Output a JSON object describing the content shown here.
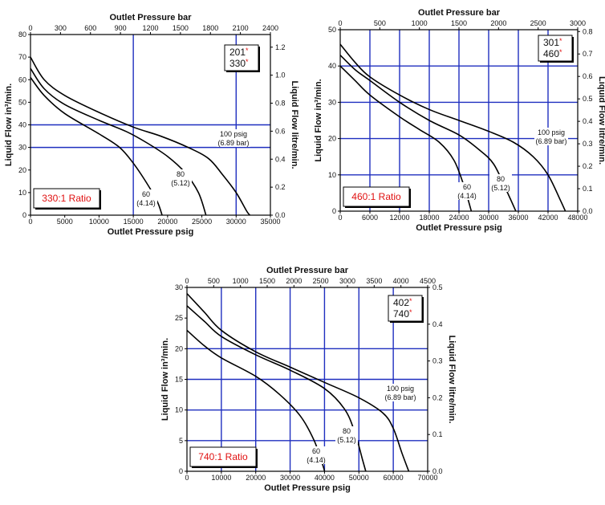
{
  "chart_data": [
    {
      "type": "line",
      "top_axis_label": "Outlet Pressure bar",
      "xlabel": "Outlet Pressure psig",
      "ylabel": "Liquid Flow in³/min.",
      "right_axis_label": "Liquid Flow litre/min.",
      "xlim": [
        0,
        35000
      ],
      "ylim": [
        0,
        80
      ],
      "x_ticks": [
        "0",
        "5000",
        "10000",
        "15000",
        "20000",
        "25000",
        "30000",
        "35000"
      ],
      "y_ticks": [
        "0",
        "10",
        "20",
        "30",
        "40",
        "50",
        "60",
        "70",
        "80"
      ],
      "top_ticks": [
        "0",
        "300",
        "600",
        "900",
        "1200",
        "1500",
        "1800",
        "2100",
        "2400"
      ],
      "right_ticks": [
        "0.0",
        "0.2",
        "0.4",
        "0.6",
        "0.8",
        "1.0",
        "1.2"
      ],
      "models": [
        "201",
        "330"
      ],
      "ratio": "330:1 Ratio",
      "series": [
        {
          "name": "60 (4.14)",
          "values": [
            [
              0,
              61
            ],
            [
              2000,
              53
            ],
            [
              5000,
              45
            ],
            [
              10000,
              36
            ],
            [
              13000,
              30
            ],
            [
              15000,
              23
            ],
            [
              17000,
              14
            ],
            [
              18500,
              6
            ],
            [
              19200,
              0
            ]
          ]
        },
        {
          "name": "80 (5.12)",
          "values": [
            [
              0,
              65
            ],
            [
              2000,
              56
            ],
            [
              5000,
              49
            ],
            [
              10000,
              42
            ],
            [
              14000,
              37
            ],
            [
              17000,
              32
            ],
            [
              20000,
              26
            ],
            [
              22500,
              19
            ],
            [
              24500,
              10
            ],
            [
              25600,
              0
            ]
          ]
        },
        {
          "name": "100 psig (6.89 bar)",
          "values": [
            [
              0,
              70
            ],
            [
              2000,
              60
            ],
            [
              5000,
              53
            ],
            [
              10000,
              45.5
            ],
            [
              15000,
              39
            ],
            [
              19000,
              35
            ],
            [
              23000,
              30
            ],
            [
              26000,
              25
            ],
            [
              28000,
              18
            ],
            [
              30000,
              10
            ],
            [
              31500,
              2
            ],
            [
              32000,
              0
            ]
          ]
        }
      ],
      "curve_labels": [
        {
          "line1": "60",
          "line2": "(4.14)"
        },
        {
          "line1": "80",
          "line2": "(5.12)"
        },
        {
          "line1": "100 psig",
          "line2": "(6.89 bar)"
        }
      ]
    },
    {
      "type": "line",
      "top_axis_label": "Outlet Pressure bar",
      "xlabel": "Outlet Pressure psig",
      "ylabel": "Liquid Flow in³/min.",
      "right_axis_label": "Liquid Flow litre/min.",
      "xlim": [
        0,
        48000
      ],
      "ylim": [
        0,
        50
      ],
      "x_ticks": [
        "0",
        "6000",
        "12000",
        "18000",
        "24000",
        "30000",
        "36000",
        "42000",
        "48000"
      ],
      "y_ticks": [
        "0",
        "10",
        "20",
        "30",
        "40",
        "50"
      ],
      "top_ticks": [
        "0",
        "500",
        "1000",
        "1500",
        "2000",
        "2500",
        "3000"
      ],
      "right_ticks": [
        "0.0",
        "0.1",
        "0.2",
        "0.3",
        "0.4",
        "0.5",
        "0.6",
        "0.7",
        "0.8"
      ],
      "models": [
        "301",
        "460"
      ],
      "ratio": "460:1 Ratio",
      "series": [
        {
          "name": "60 (4.14)",
          "values": [
            [
              0,
              40
            ],
            [
              3000,
              36
            ],
            [
              6000,
              32
            ],
            [
              12000,
              26
            ],
            [
              16000,
              22.5
            ],
            [
              20000,
              19
            ],
            [
              23000,
              14
            ],
            [
              25000,
              7
            ],
            [
              26500,
              0
            ]
          ]
        },
        {
          "name": "80 (5.12)",
          "values": [
            [
              0,
              43
            ],
            [
              3000,
              39
            ],
            [
              6000,
              36
            ],
            [
              12000,
              30
            ],
            [
              18000,
              25
            ],
            [
              24000,
              21
            ],
            [
              28000,
              17
            ],
            [
              31000,
              13
            ],
            [
              33500,
              6
            ],
            [
              35500,
              0
            ]
          ]
        },
        {
          "name": "100 psig (6.89 bar)",
          "values": [
            [
              0,
              46
            ],
            [
              3000,
              41
            ],
            [
              6000,
              37
            ],
            [
              12000,
              32
            ],
            [
              18000,
              28
            ],
            [
              24000,
              25
            ],
            [
              30000,
              22
            ],
            [
              35000,
              19
            ],
            [
              39000,
              15
            ],
            [
              42000,
              10
            ],
            [
              44500,
              3
            ],
            [
              45500,
              0
            ]
          ]
        }
      ],
      "curve_labels": [
        {
          "line1": "60",
          "line2": "(4.14)"
        },
        {
          "line1": "80",
          "line2": "(5.12)"
        },
        {
          "line1": "100 psig",
          "line2": "(6.89 bar)"
        }
      ]
    },
    {
      "type": "line",
      "top_axis_label": "Outlet Pressure bar",
      "xlabel": "Outlet Pressure psig",
      "ylabel": "Liquid Flow in³/min.",
      "right_axis_label": "Liquid Flow litre/min.",
      "xlim": [
        0,
        70000
      ],
      "ylim": [
        0,
        30
      ],
      "x_ticks": [
        "0",
        "10000",
        "20000",
        "30000",
        "40000",
        "50000",
        "60000",
        "70000"
      ],
      "y_ticks": [
        "0",
        "5",
        "10",
        "15",
        "20",
        "25",
        "30"
      ],
      "top_ticks": [
        "0",
        "500",
        "1000",
        "1500",
        "2000",
        "2500",
        "3000",
        "3500",
        "4000",
        "4500"
      ],
      "right_ticks": [
        "0.0",
        "0.1",
        "0.2",
        "0.3",
        "0.4",
        "0.5"
      ],
      "models": [
        "402",
        "740"
      ],
      "ratio": "740:1 Ratio",
      "series": [
        {
          "name": "60 (4.14)",
          "values": [
            [
              0,
              23
            ],
            [
              5000,
              20.5
            ],
            [
              10000,
              18.5
            ],
            [
              20000,
              15.5
            ],
            [
              27000,
              12.5
            ],
            [
              33000,
              9
            ],
            [
              37000,
              5
            ],
            [
              39500,
              1
            ],
            [
              40000,
              0
            ]
          ]
        },
        {
          "name": "80 (5.12)",
          "values": [
            [
              0,
              27
            ],
            [
              5000,
              24.5
            ],
            [
              10000,
              22
            ],
            [
              20000,
              19
            ],
            [
              30000,
              16.5
            ],
            [
              40000,
              13.5
            ],
            [
              46000,
              10
            ],
            [
              49000,
              6
            ],
            [
              51000,
              2
            ],
            [
              52000,
              0
            ]
          ]
        },
        {
          "name": "100 psig (6.89 bar)",
          "values": [
            [
              0,
              29
            ],
            [
              5000,
              26
            ],
            [
              10000,
              23
            ],
            [
              20000,
              19.5
            ],
            [
              30000,
              17
            ],
            [
              40000,
              14.5
            ],
            [
              50000,
              12
            ],
            [
              57000,
              9.5
            ],
            [
              60000,
              7
            ],
            [
              62500,
              3
            ],
            [
              64500,
              0
            ]
          ]
        }
      ],
      "curve_labels": [
        {
          "line1": "60",
          "line2": "(4.14)"
        },
        {
          "line1": "80",
          "line2": "(5.12)"
        },
        {
          "line1": "100 psig",
          "line2": "(6.89 bar)"
        }
      ]
    }
  ]
}
